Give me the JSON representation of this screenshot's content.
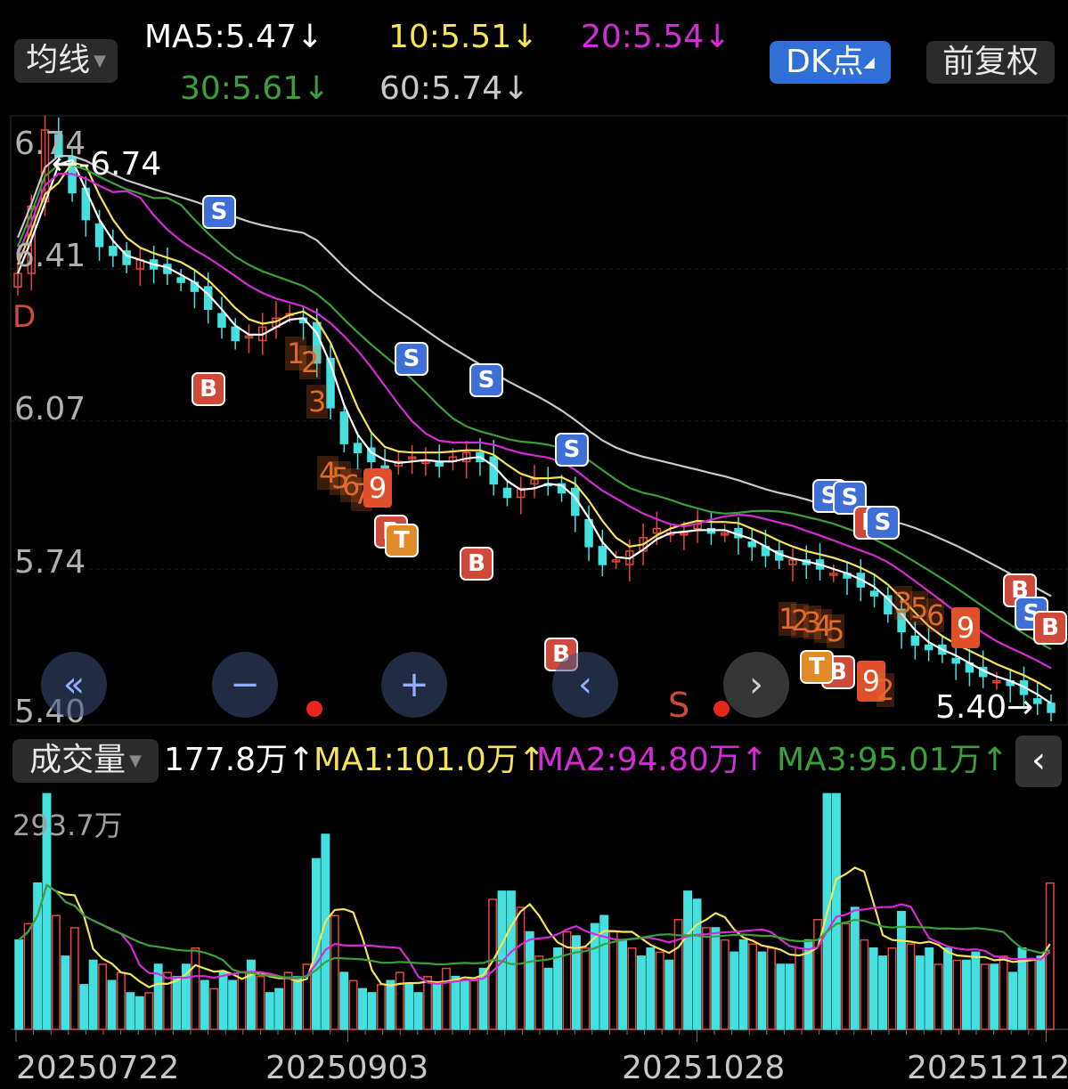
{
  "header": {
    "indicator_select": "均线",
    "ma5": "MA5:5.47↓",
    "ma10": "10:5.51↓",
    "ma20": "20:5.54↓",
    "ma30": "30:5.61↓",
    "ma60": "60:5.74↓",
    "dk_button": "DK点",
    "adjust_button": "前复权"
  },
  "colors": {
    "up": "#e8453c",
    "down": "#44e0e0",
    "ma5": "#ffffff",
    "ma10": "#f6e35a",
    "ma20": "#d62bd6",
    "ma30": "#3aa13a",
    "ma60": "#c8c8c8",
    "sell": "#3d6fd6",
    "buy": "#d04a3a"
  },
  "price_panel": {
    "y_labels": [
      "6.74",
      "6.41",
      "6.07",
      "5.74",
      "5.40"
    ],
    "max_label": "←-6.74",
    "min_label": "5.40→",
    "side_letter": "D",
    "s_mark": "S",
    "seq_labels": [
      "1",
      "2",
      "3",
      "4",
      "5",
      "6",
      "7",
      "8",
      "9"
    ]
  },
  "volume_header": {
    "select": "成交量",
    "vol": "177.8万↑",
    "ma1": "MA1:101.0万↑",
    "ma2": "MA2:94.80万↑",
    "ma3": "MA3:95.01万↑",
    "collapse_icon": "‹"
  },
  "volume_panel": {
    "top_label": "293.7万"
  },
  "x_labels": [
    "20250722",
    "20250903",
    "20251028",
    "20251212"
  ],
  "nav_icons": [
    "double-chevron-left-icon",
    "zoom-out-icon",
    "zoom-in-icon",
    "chevron-left-icon",
    "chevron-right-icon"
  ],
  "chart_data": {
    "type": "candlestick",
    "y_range": [
      5.4,
      6.74
    ],
    "price_path": [
      6.4,
      6.55,
      6.72,
      6.66,
      6.58,
      6.52,
      6.46,
      6.44,
      6.42,
      6.43,
      6.41,
      6.4,
      6.38,
      6.36,
      6.32,
      6.28,
      6.25,
      6.26,
      6.28,
      6.3,
      6.31,
      6.29,
      6.2,
      6.1,
      6.02,
      6.0,
      5.98,
      5.97,
      5.98,
      5.99,
      5.98,
      5.97,
      5.99,
      6.0,
      5.98,
      5.93,
      5.9,
      5.92,
      5.94,
      5.93,
      5.91,
      5.86,
      5.79,
      5.75,
      5.76,
      5.78,
      5.81,
      5.83,
      5.82,
      5.82,
      5.84,
      5.82,
      5.82,
      5.81,
      5.79,
      5.77,
      5.76,
      5.76,
      5.75,
      5.74,
      5.73,
      5.72,
      5.7,
      5.68,
      5.64,
      5.6,
      5.57,
      5.56,
      5.55,
      5.53,
      5.51,
      5.5,
      5.49,
      5.48,
      5.46,
      5.44,
      5.42
    ],
    "ma_series": [
      {
        "name": "MA5",
        "last": 5.47
      },
      {
        "name": "MA10",
        "last": 5.51
      },
      {
        "name": "MA20",
        "last": 5.54
      },
      {
        "name": "MA30",
        "last": 5.61
      },
      {
        "name": "MA60",
        "last": 5.74
      }
    ],
    "volume_top": 293.7,
    "volume_values": [
      110,
      130,
      180,
      290,
      140,
      90,
      125,
      55,
      85,
      80,
      60,
      70,
      45,
      40,
      45,
      80,
      70,
      65,
      80,
      100,
      60,
      50,
      70,
      60,
      70,
      85,
      65,
      45,
      50,
      70,
      65,
      80,
      210,
      240,
      140,
      70,
      60,
      50,
      45,
      55,
      60,
      70,
      55,
      45,
      65,
      55,
      75,
      65,
      60,
      60,
      75,
      160,
      170,
      170,
      150,
      120,
      90,
      75,
      100,
      120,
      115,
      100,
      130,
      140,
      120,
      110,
      100,
      90,
      100,
      95,
      85,
      135,
      170,
      160,
      125,
      125,
      110,
      95,
      110,
      105,
      95,
      100,
      80,
      80,
      100,
      110,
      135,
      290,
      290,
      130,
      150,
      110,
      100,
      90,
      100,
      145,
      105,
      90,
      100,
      80,
      100,
      85,
      85,
      95,
      80,
      80,
      90,
      70,
      100,
      85,
      90,
      180
    ],
    "volume_ma": [
      {
        "name": "MA1",
        "last": 101.0
      },
      {
        "name": "MA2",
        "last": 94.8
      },
      {
        "name": "MA3",
        "last": 95.01
      }
    ],
    "x_tick_labels": [
      "20250722",
      "20250903",
      "20251028",
      "20251212"
    ]
  }
}
